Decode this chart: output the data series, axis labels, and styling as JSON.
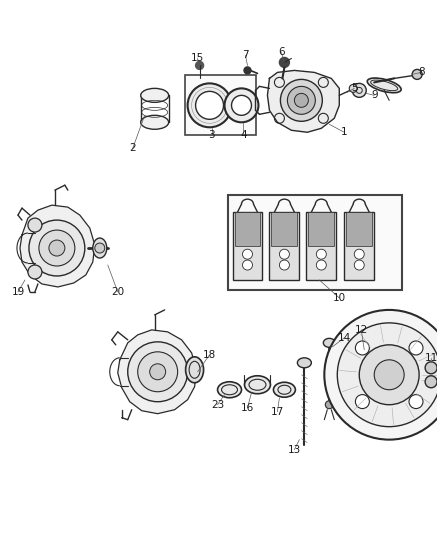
{
  "bg_color": "#ffffff",
  "line_color": "#2a2a2a",
  "label_color": "#1a1a1a",
  "fig_width": 4.38,
  "fig_height": 5.33,
  "dpi": 100
}
